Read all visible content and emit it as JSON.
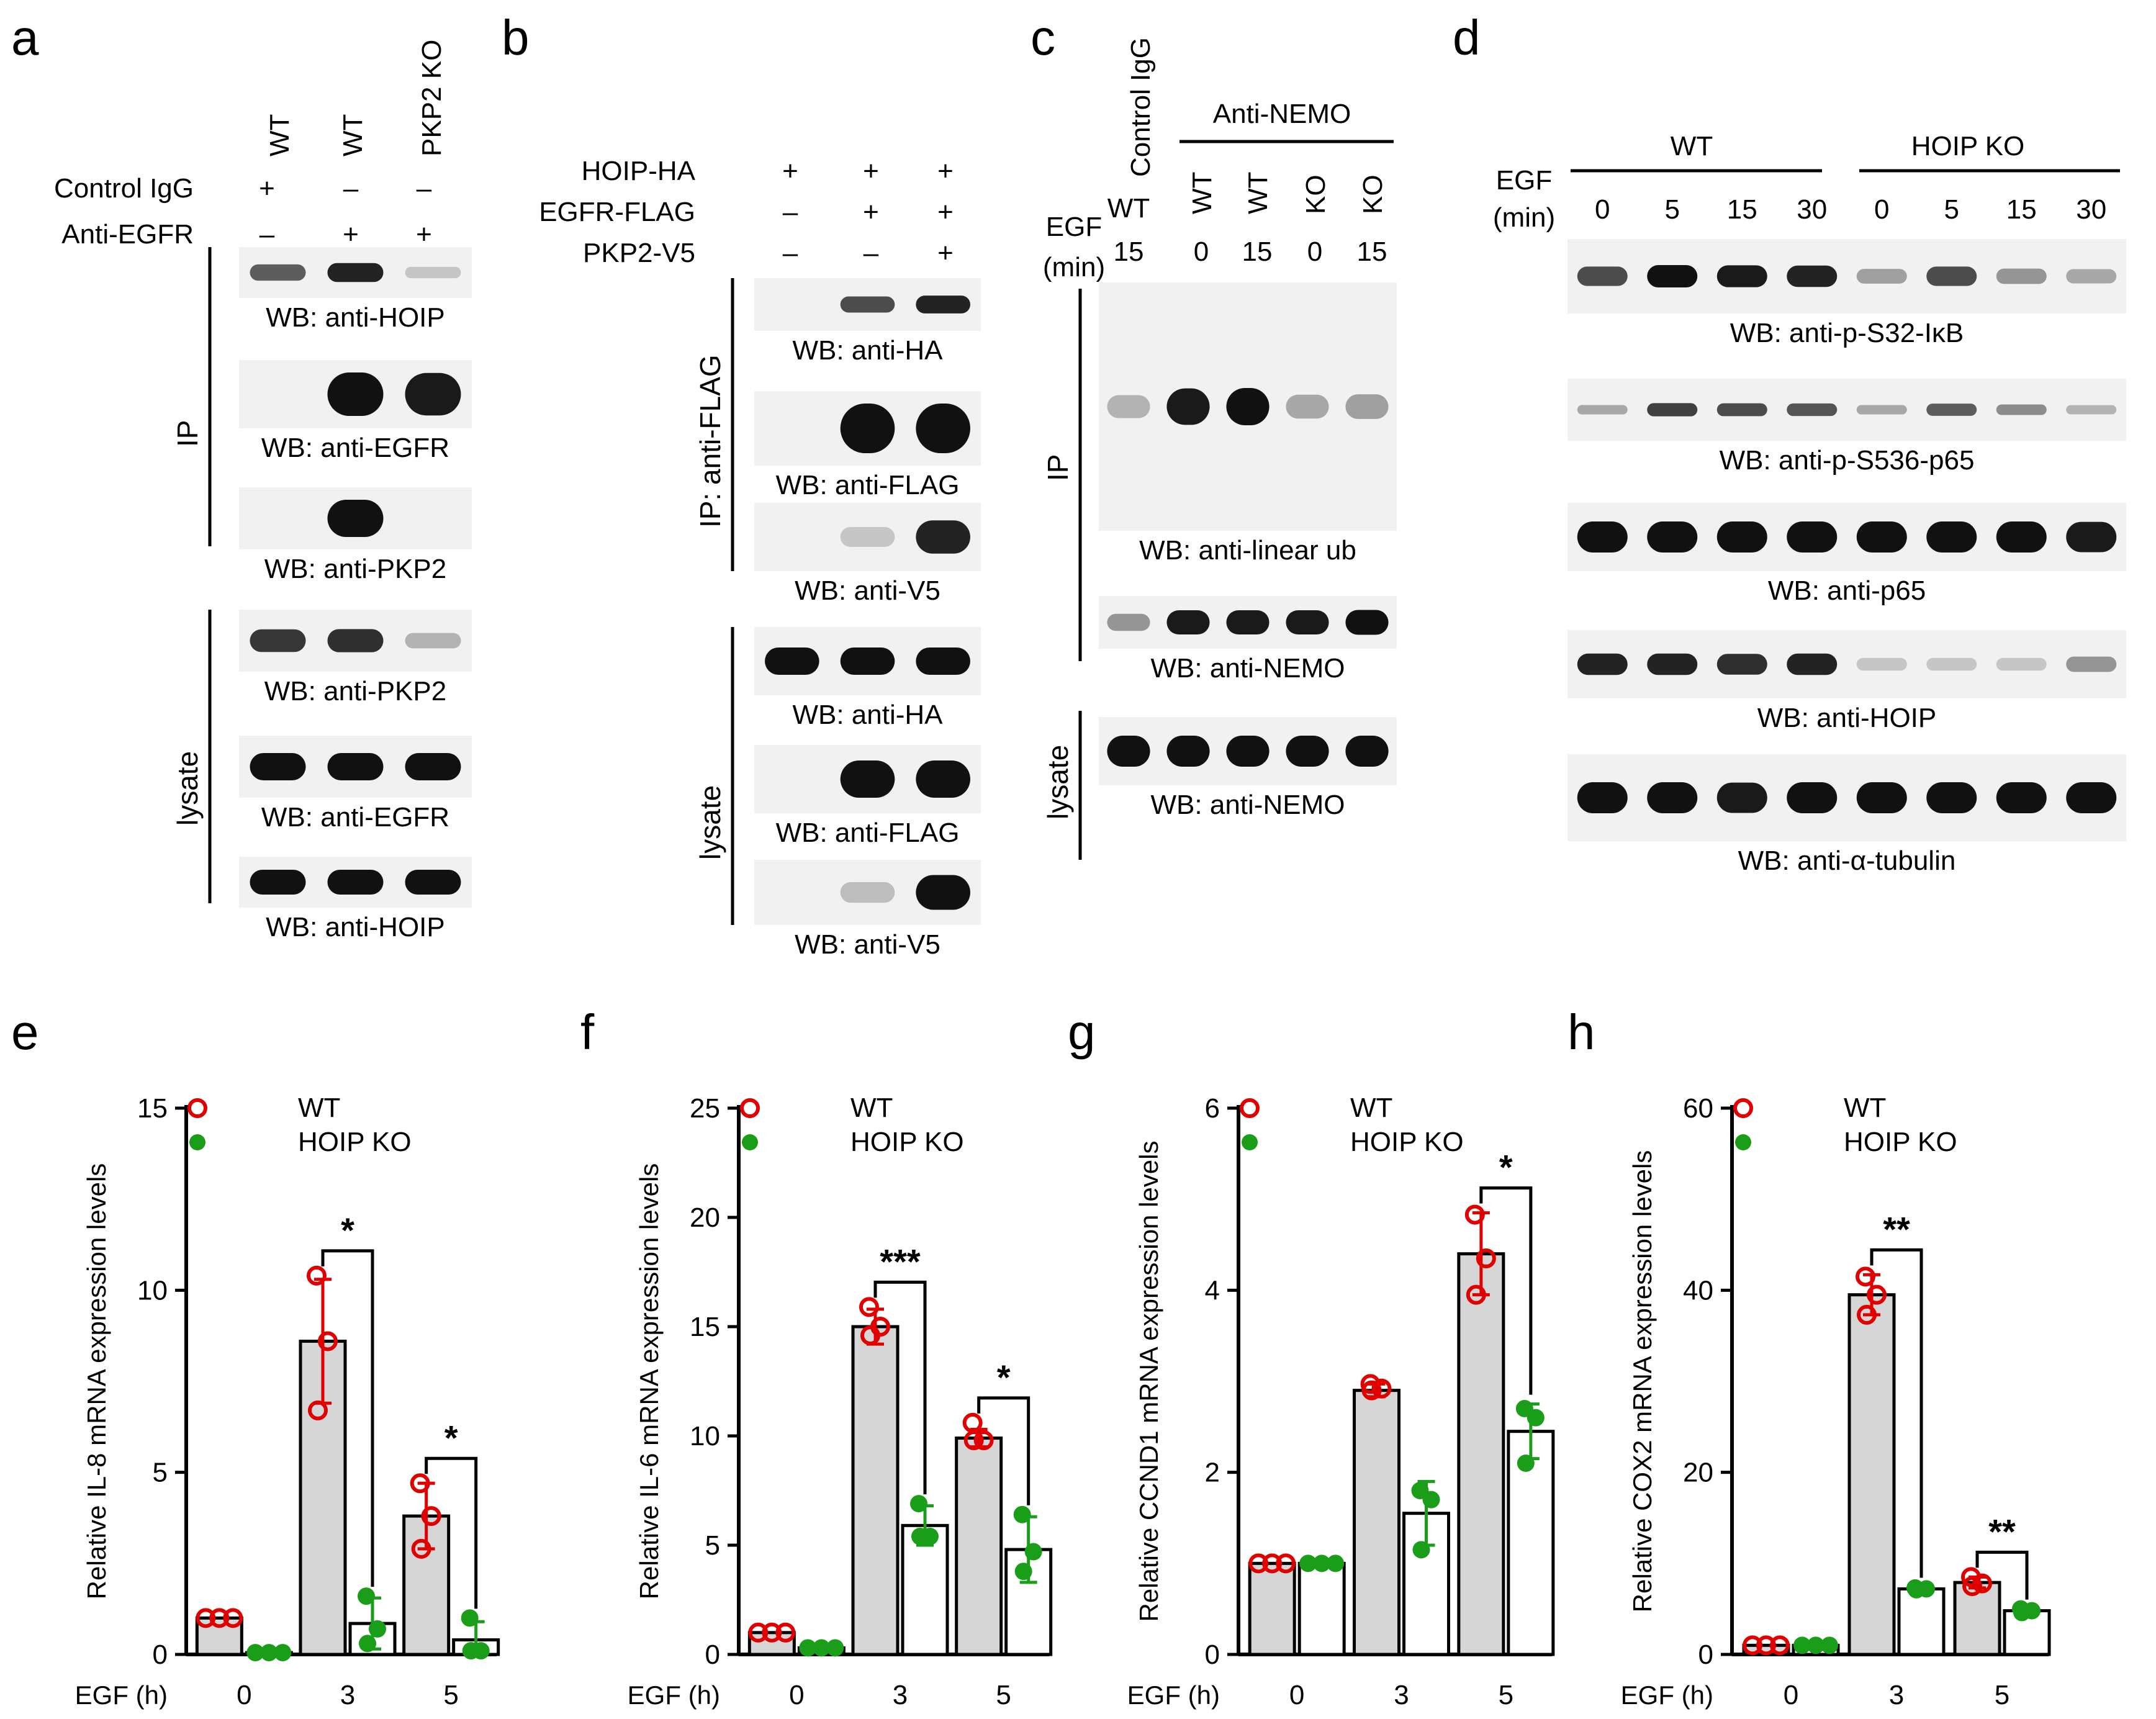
{
  "panel_letters": [
    "a",
    "b",
    "c",
    "d",
    "e",
    "f",
    "g",
    "h"
  ],
  "panel_a": {
    "lanes": [
      "WT",
      "WT",
      "PKP2 KO"
    ],
    "conditions": [
      {
        "label": "Control IgG",
        "marks": [
          "+",
          "–",
          "–"
        ]
      },
      {
        "label": "Anti-EGFR",
        "marks": [
          "–",
          "+",
          "+"
        ]
      }
    ],
    "groups": {
      "ip": "IP",
      "lysate": "lysate"
    },
    "blots": [
      {
        "label": "WB: anti-HOIP",
        "intensity": [
          0.6,
          0.9,
          0.05
        ]
      },
      {
        "label": "WB: anti-EGFR",
        "intensity": [
          0.0,
          1.0,
          0.95
        ]
      },
      {
        "label": "WB: anti-PKP2",
        "intensity": [
          0.0,
          1.0,
          0.0
        ]
      },
      {
        "label": "WB: anti-PKP2",
        "intensity": [
          0.8,
          0.85,
          0.15
        ]
      },
      {
        "label": "WB: anti-EGFR",
        "intensity": [
          1.0,
          1.0,
          1.0
        ]
      },
      {
        "label": "WB: anti-HOIP",
        "intensity": [
          1.0,
          1.0,
          1.0
        ]
      }
    ]
  },
  "panel_b": {
    "conditions": [
      {
        "label": "HOIP-HA",
        "marks": [
          "+",
          "+",
          "+"
        ]
      },
      {
        "label": "EGFR-FLAG",
        "marks": [
          "–",
          "+",
          "+"
        ]
      },
      {
        "label": "PKP2-V5",
        "marks": [
          "–",
          "–",
          "+"
        ]
      }
    ],
    "groups": {
      "ip": "IP: anti-FLAG",
      "lysate": "lysate"
    },
    "blots": [
      {
        "label": "WB: anti-HA",
        "intensity": [
          0.0,
          0.7,
          0.9
        ]
      },
      {
        "label": "WB: anti-FLAG",
        "intensity": [
          0.0,
          1.0,
          1.0
        ]
      },
      {
        "label": "WB: anti-V5",
        "intensity": [
          0.0,
          0.05,
          0.9
        ]
      },
      {
        "label": "WB: anti-HA",
        "intensity": [
          1.0,
          1.0,
          1.0
        ]
      },
      {
        "label": "WB: anti-FLAG",
        "intensity": [
          0.0,
          1.0,
          1.0
        ]
      },
      {
        "label": "WB: anti-V5",
        "intensity": [
          0.0,
          0.1,
          1.0
        ]
      }
    ]
  },
  "panel_c": {
    "control_label": "Control IgG",
    "anti_label": "Anti-NEMO",
    "egf_label_1": "EGF",
    "egf_label_2": "(min)",
    "genotypes": [
      "WT",
      "WT",
      "WT",
      "KO",
      "KO"
    ],
    "times": [
      "15",
      "0",
      "15",
      "0",
      "15"
    ],
    "groups": {
      "ip": "IP",
      "lysate": "lysate"
    },
    "blots": [
      {
        "label": "WB: anti-linear ub",
        "intensity": [
          0.15,
          0.95,
          1.0,
          0.2,
          0.25
        ]
      },
      {
        "label": "WB: anti-NEMO",
        "intensity": [
          0.3,
          0.95,
          0.95,
          0.95,
          1.0
        ]
      },
      {
        "label": "WB: anti-NEMO",
        "intensity": [
          1.0,
          1.0,
          1.0,
          1.0,
          1.0
        ]
      }
    ]
  },
  "panel_d": {
    "egf_label_1": "EGF",
    "egf_label_2": "(min)",
    "group_wt": "WT",
    "group_ko": "HOIP KO",
    "times": [
      "0",
      "5",
      "15",
      "30",
      "0",
      "5",
      "15",
      "30"
    ],
    "blots": [
      {
        "label": "WB: anti-p-S32-IκB",
        "intensity": [
          0.7,
          1.0,
          0.95,
          0.9,
          0.25,
          0.7,
          0.3,
          0.2
        ]
      },
      {
        "label": "WB: anti-p-S536-p65",
        "intensity": [
          0.2,
          0.75,
          0.7,
          0.65,
          0.2,
          0.6,
          0.35,
          0.15
        ]
      },
      {
        "label": "WB: anti-p65",
        "intensity": [
          1.0,
          1.0,
          1.0,
          1.0,
          1.0,
          1.0,
          1.0,
          0.95
        ]
      },
      {
        "label": "WB: anti-HOIP",
        "intensity": [
          0.9,
          0.9,
          0.85,
          0.9,
          0.05,
          0.05,
          0.05,
          0.3
        ]
      },
      {
        "label": "WB: anti-α-tubulin",
        "intensity": [
          1.0,
          1.0,
          0.95,
          1.0,
          1.0,
          1.0,
          1.0,
          1.0
        ]
      }
    ]
  },
  "chart_data": [
    {
      "panel": "e",
      "type": "bar",
      "ylabel": "Relative IL-8 mRNA expression levels",
      "xlabel": "EGF (h)",
      "categories": [
        "0",
        "3",
        "5"
      ],
      "ylim": [
        0,
        15
      ],
      "yticks": [
        0,
        5,
        10,
        15
      ],
      "series": [
        {
          "name": "WT",
          "values": [
            1.0,
            8.6,
            3.8
          ],
          "sd": [
            0.05,
            1.7,
            0.9
          ],
          "points": [
            [
              1.0,
              1.0,
              1.0
            ],
            [
              10.4,
              8.6,
              6.7
            ],
            [
              4.7,
              3.8,
              2.9
            ]
          ]
        },
        {
          "name": "HOIP KO",
          "values": [
            0.05,
            0.85,
            0.4
          ],
          "sd": [
            0.02,
            0.7,
            0.5
          ],
          "points": [
            [
              0.05,
              0.05,
              0.05
            ],
            [
              1.6,
              0.7,
              0.3
            ],
            [
              1.0,
              0.1,
              0.1
            ]
          ]
        }
      ],
      "significance": [
        "",
        "*",
        "*"
      ]
    },
    {
      "panel": "f",
      "type": "bar",
      "ylabel": "Relative IL-6 mRNA expression levels",
      "xlabel": "EGF (h)",
      "categories": [
        "0",
        "3",
        "5"
      ],
      "ylim": [
        0,
        25
      ],
      "yticks": [
        0,
        5,
        10,
        15,
        20,
        25
      ],
      "series": [
        {
          "name": "WT",
          "values": [
            1.0,
            15.0,
            9.9
          ],
          "sd": [
            0.1,
            0.8,
            0.4
          ],
          "points": [
            [
              1.0,
              1.0,
              1.0
            ],
            [
              15.9,
              15.0,
              14.6
            ],
            [
              10.6,
              9.8,
              9.8
            ]
          ]
        },
        {
          "name": "HOIP KO",
          "values": [
            0.3,
            5.9,
            4.8
          ],
          "sd": [
            0.1,
            0.9,
            1.5
          ],
          "points": [
            [
              0.3,
              0.3,
              0.3
            ],
            [
              6.9,
              5.4,
              5.4
            ],
            [
              6.4,
              4.7,
              3.8
            ]
          ]
        }
      ],
      "significance": [
        "",
        "***",
        "*"
      ]
    },
    {
      "panel": "g",
      "type": "bar",
      "ylabel": "Relative CCND1 mRNA expression levels",
      "xlabel": "EGF (h)",
      "categories": [
        "0",
        "3",
        "5"
      ],
      "ylim": [
        0,
        6
      ],
      "yticks": [
        0,
        2,
        4,
        6
      ],
      "series": [
        {
          "name": "WT",
          "values": [
            1.0,
            2.9,
            4.4
          ],
          "sd": [
            0.02,
            0.07,
            0.45
          ],
          "points": [
            [
              1.0,
              1.0,
              1.0
            ],
            [
              2.97,
              2.92,
              2.9
            ],
            [
              4.83,
              4.35,
              3.95
            ]
          ]
        },
        {
          "name": "HOIP KO",
          "values": [
            1.0,
            1.55,
            2.45
          ],
          "sd": [
            0.02,
            0.35,
            0.3
          ],
          "points": [
            [
              1.0,
              1.0,
              1.0
            ],
            [
              1.8,
              1.7,
              1.15
            ],
            [
              2.7,
              2.6,
              2.1
            ]
          ]
        }
      ],
      "significance": [
        "",
        "",
        "*"
      ]
    },
    {
      "panel": "h",
      "type": "bar",
      "ylabel": "Relative COX2 mRNA expression levels",
      "xlabel": "EGF (h)",
      "categories": [
        "0",
        "3",
        "5"
      ],
      "ylim": [
        0,
        60
      ],
      "yticks": [
        0,
        20,
        40,
        60
      ],
      "series": [
        {
          "name": "WT",
          "values": [
            1.0,
            39.5,
            7.9
          ],
          "sd": [
            0.1,
            2.2,
            0.6
          ],
          "points": [
            [
              1.0,
              1.0,
              1.0
            ],
            [
              41.5,
              39.5,
              37.3
            ],
            [
              8.5,
              7.8,
              7.5
            ]
          ]
        },
        {
          "name": "HOIP KO",
          "values": [
            1.0,
            7.2,
            4.8
          ],
          "sd": [
            0.1,
            0.2,
            0.2
          ],
          "points": [
            [
              1.0,
              1.0,
              1.0
            ],
            [
              7.3,
              7.2,
              7.1
            ],
            [
              5.0,
              4.8,
              4.6
            ]
          ]
        }
      ],
      "significance": [
        "",
        "**",
        "**"
      ]
    }
  ]
}
